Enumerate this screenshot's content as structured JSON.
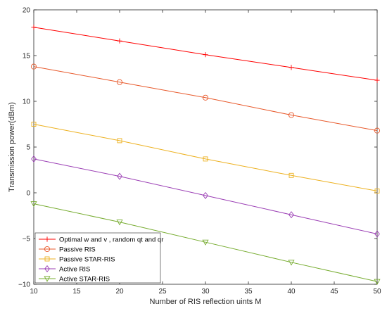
{
  "chart_data": {
    "type": "line",
    "xlabel": "Number of RIS reflection uints M",
    "ylabel": "Transmission power(dBm)",
    "xlim": [
      10,
      50
    ],
    "ylim": [
      -10,
      20
    ],
    "xticks": [
      10,
      15,
      20,
      25,
      30,
      35,
      40,
      45,
      50
    ],
    "yticks": [
      -10,
      -5,
      0,
      5,
      10,
      15,
      20
    ],
    "legend_position": "bottom-left",
    "grid": false,
    "x": [
      10,
      20,
      30,
      40,
      50
    ],
    "series": [
      {
        "name": "Optimal w and v , random qt and qr",
        "color": "#ff0000",
        "marker": "plus",
        "values": [
          18.1,
          16.6,
          15.1,
          13.7,
          12.3
        ]
      },
      {
        "name": "Passive RIS",
        "color": "#e8592b",
        "marker": "circle",
        "values": [
          13.8,
          12.1,
          10.4,
          8.5,
          6.8
        ]
      },
      {
        "name": "Passive STAR-RIS",
        "color": "#edb120",
        "marker": "square",
        "values": [
          7.5,
          5.7,
          3.7,
          1.9,
          0.2
        ]
      },
      {
        "name": "Active RIS",
        "color": "#9b3fb5",
        "marker": "diamond",
        "values": [
          3.7,
          1.8,
          -0.3,
          -2.4,
          -4.5
        ]
      },
      {
        "name": "Active STAR-RIS",
        "color": "#77ac30",
        "marker": "triangle-down",
        "values": [
          -1.2,
          -3.2,
          -5.4,
          -7.6,
          -9.7
        ]
      }
    ]
  }
}
